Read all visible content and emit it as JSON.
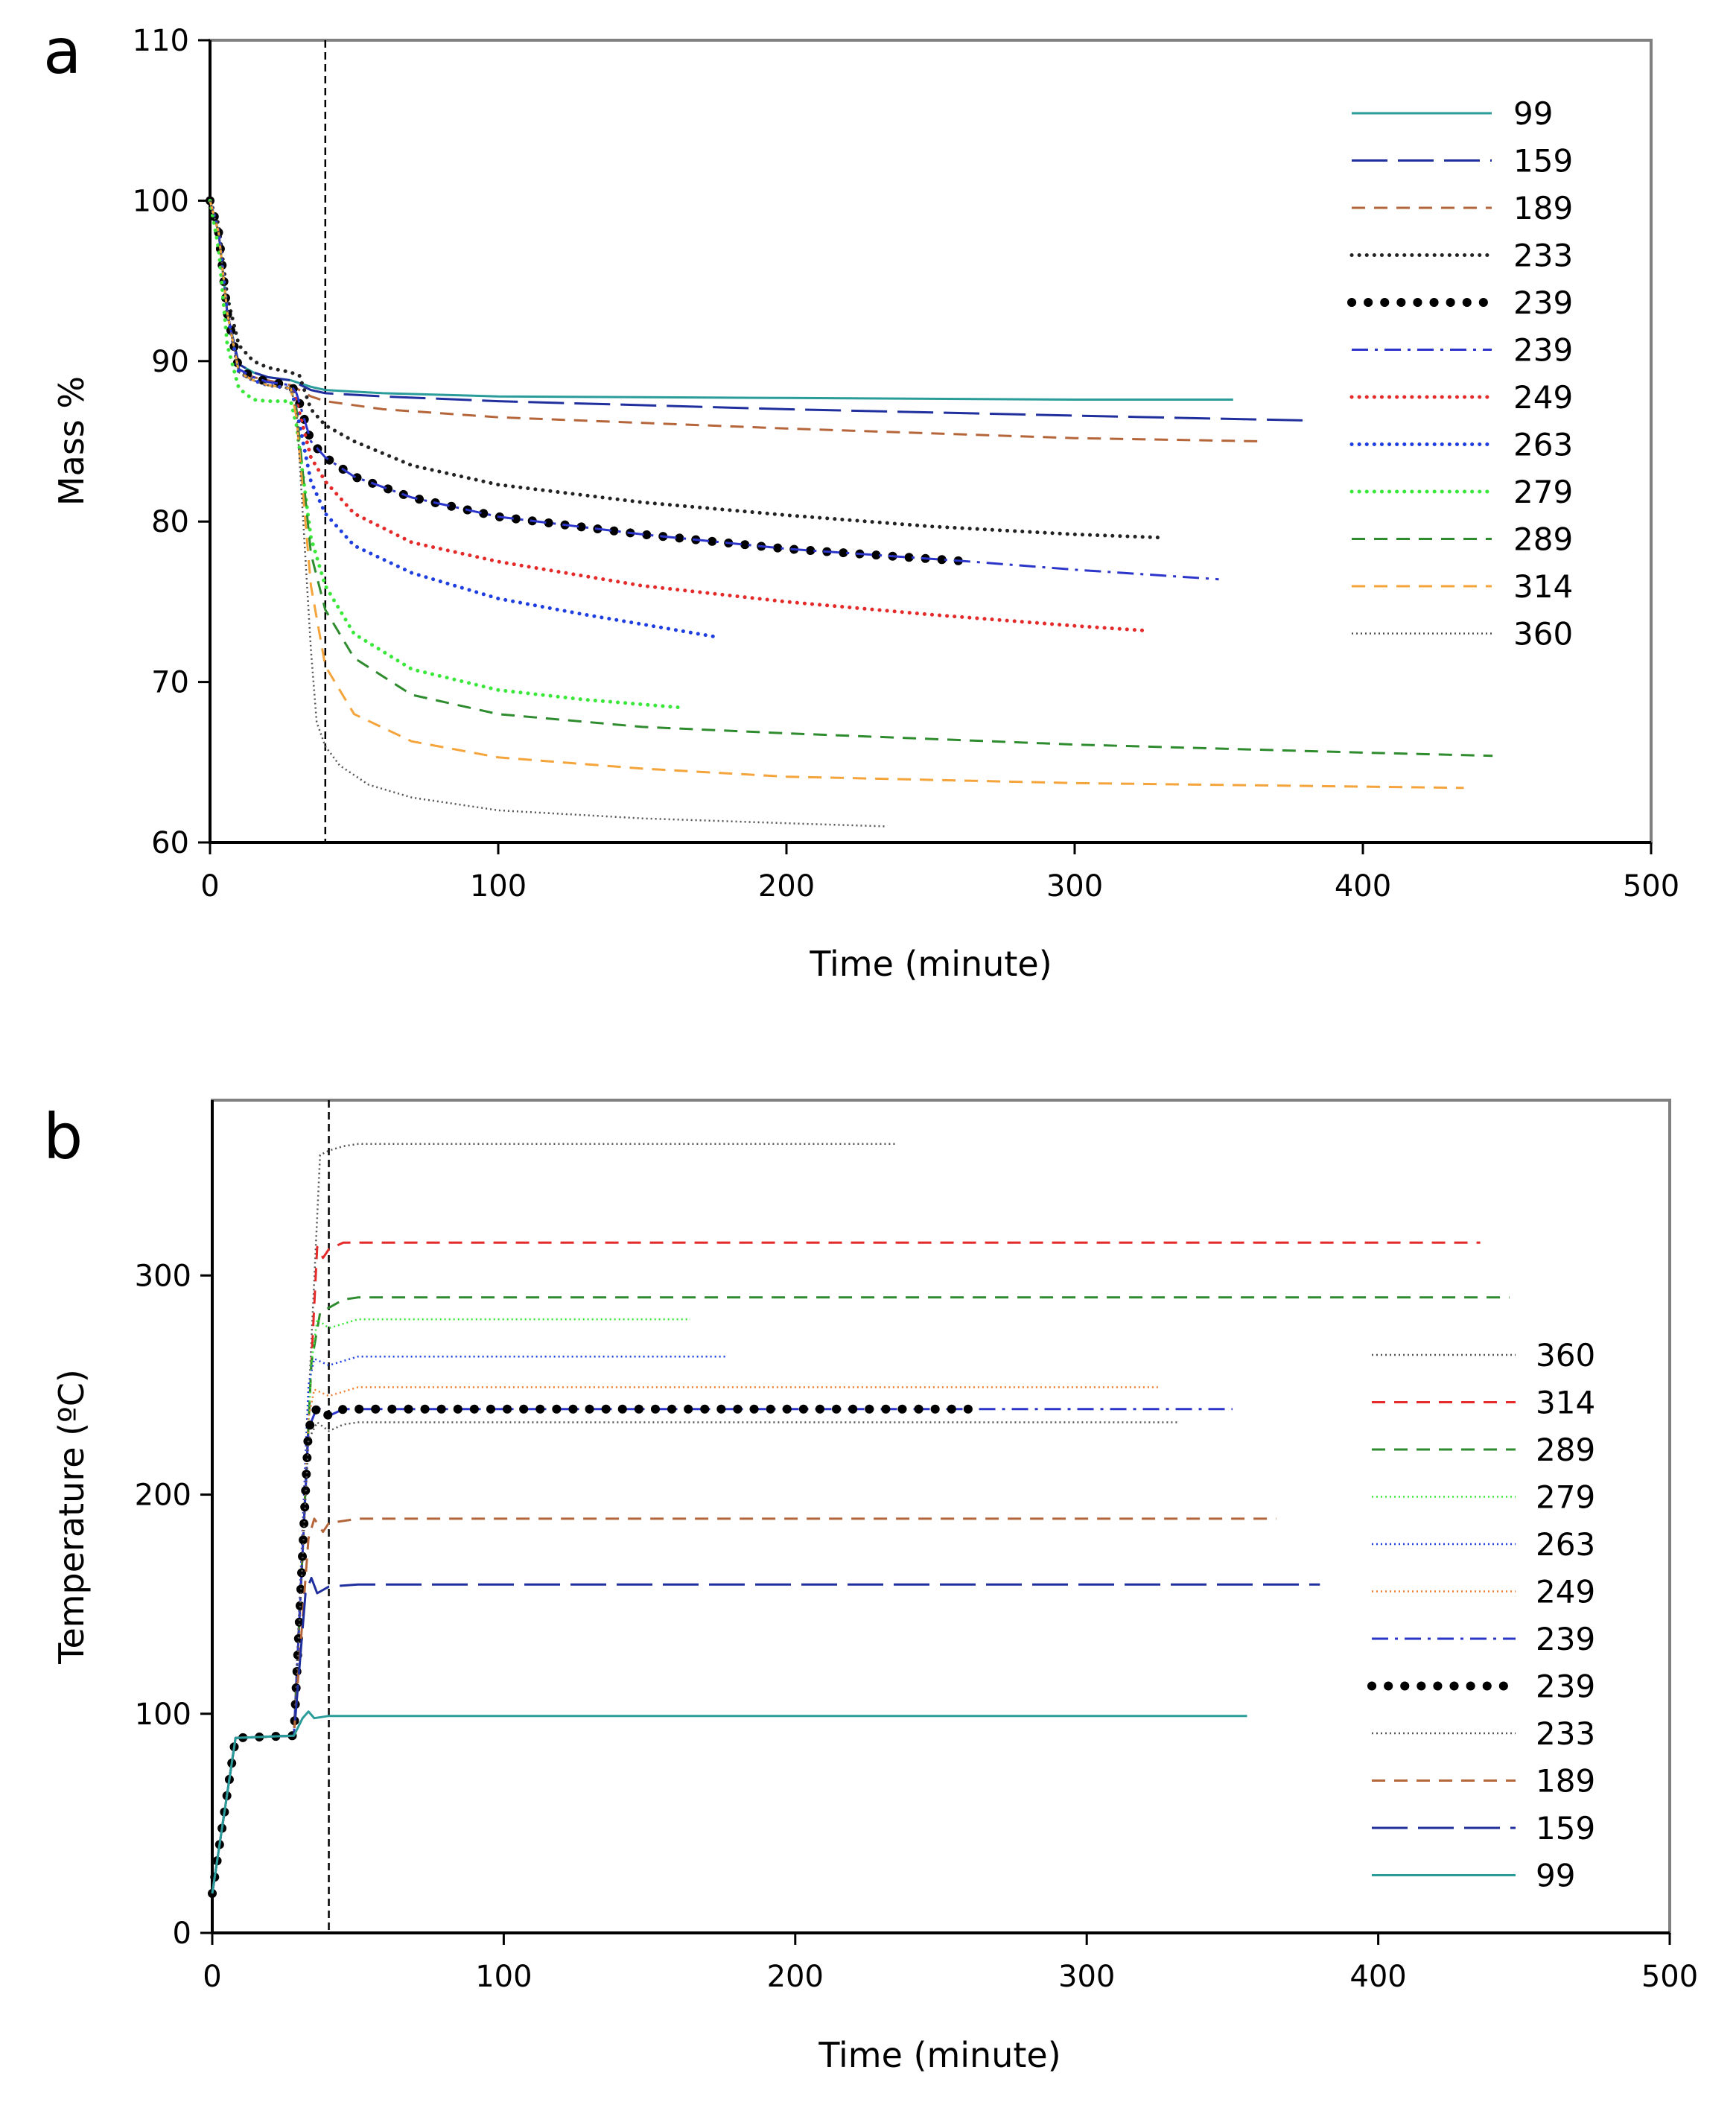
{
  "chart_data": [
    {
      "panel": "a",
      "type": "line",
      "xlabel": "Time (minute)",
      "ylabel": "Mass %",
      "xlim": [
        0,
        500
      ],
      "ylim": [
        60,
        110
      ],
      "xticks": [
        0,
        100,
        200,
        300,
        400,
        500
      ],
      "yticks": [
        60,
        70,
        80,
        90,
        100,
        110
      ],
      "grid": false,
      "vline_x": 40,
      "legend_position": "top-right",
      "series": [
        {
          "name": "99",
          "color": "#2a9d9a",
          "style": "solid",
          "x": [
            0,
            3,
            6,
            10,
            15,
            20,
            28,
            35,
            40,
            60,
            100,
            200,
            300,
            355
          ],
          "y": [
            100,
            98,
            93,
            89.8,
            89.3,
            89,
            88.8,
            88.4,
            88.2,
            88,
            87.8,
            87.7,
            87.6,
            87.6
          ]
        },
        {
          "name": "159",
          "color": "#1f2f9e",
          "style": "longdash",
          "x": [
            0,
            3,
            6,
            10,
            15,
            20,
            28,
            35,
            40,
            60,
            100,
            200,
            300,
            380
          ],
          "y": [
            100,
            98,
            93,
            89.8,
            89.3,
            89,
            88.8,
            88.2,
            88,
            87.8,
            87.5,
            87,
            86.6,
            86.3
          ]
        },
        {
          "name": "189",
          "color": "#b5653a",
          "style": "dash",
          "x": [
            0,
            3,
            6,
            10,
            15,
            20,
            28,
            35,
            40,
            60,
            100,
            200,
            300,
            365
          ],
          "y": [
            100,
            98,
            93,
            89.5,
            89,
            88.8,
            88.5,
            87.8,
            87.5,
            87,
            86.5,
            85.8,
            85.2,
            85
          ]
        },
        {
          "name": "233",
          "color": "#222222",
          "style": "dot",
          "x": [
            0,
            3,
            6,
            10,
            15,
            20,
            28,
            31,
            35,
            40,
            50,
            70,
            100,
            150,
            200,
            250,
            300,
            330
          ],
          "y": [
            100,
            98.5,
            94,
            91,
            90,
            89.6,
            89.3,
            89.1,
            87,
            86,
            85,
            83.5,
            82.3,
            81.2,
            80.4,
            79.7,
            79.2,
            79
          ]
        },
        {
          "name": "239",
          "color": "#000000",
          "style": "bigdot",
          "x": [
            0,
            3,
            6,
            10,
            15,
            20,
            28,
            30,
            35,
            40,
            50,
            70,
            100,
            150,
            200,
            264
          ],
          "y": [
            100,
            98,
            93,
            89.5,
            89,
            88.7,
            88.5,
            88,
            85,
            84,
            82.8,
            81.5,
            80.3,
            79.2,
            78.3,
            77.5
          ]
        },
        {
          "name": "239",
          "color": "#2b35c9",
          "style": "dashdot",
          "x": [
            0,
            3,
            6,
            10,
            15,
            20,
            28,
            30,
            35,
            40,
            50,
            70,
            100,
            150,
            200,
            264,
            300,
            350
          ],
          "y": [
            100,
            98,
            93,
            89.5,
            89,
            88.7,
            88.5,
            88,
            85,
            84,
            82.8,
            81.5,
            80.3,
            79.2,
            78.3,
            77.5,
            77,
            76.4
          ]
        },
        {
          "name": "249",
          "color": "#e52a2a",
          "style": "dot",
          "x": [
            0,
            3,
            6,
            10,
            15,
            20,
            28,
            30,
            35,
            40,
            50,
            70,
            100,
            150,
            200,
            250,
            300,
            325
          ],
          "y": [
            100,
            98,
            93,
            89.3,
            88.8,
            88.5,
            88.3,
            87.5,
            84,
            82.5,
            80.5,
            78.7,
            77.5,
            76,
            75,
            74.2,
            73.5,
            73.2
          ]
        },
        {
          "name": "263",
          "color": "#1e3ee0",
          "style": "dot",
          "x": [
            0,
            3,
            6,
            10,
            15,
            20,
            28,
            30,
            35,
            40,
            50,
            70,
            100,
            130,
            150,
            176
          ],
          "y": [
            100,
            98,
            93,
            89.3,
            88.8,
            88.5,
            88.3,
            87,
            82.5,
            80.5,
            78.5,
            76.8,
            75.2,
            74.2,
            73.6,
            72.8
          ]
        },
        {
          "name": "279",
          "color": "#3ae83a",
          "style": "dot",
          "x": [
            0,
            3,
            6,
            10,
            15,
            20,
            28,
            30,
            35,
            40,
            50,
            70,
            100,
            130,
            164
          ],
          "y": [
            100,
            97,
            91,
            88.3,
            87.6,
            87.5,
            87.5,
            86,
            79,
            76,
            73,
            70.8,
            69.5,
            68.9,
            68.4
          ]
        },
        {
          "name": "289",
          "color": "#2e8b2e",
          "style": "dash",
          "x": [
            0,
            3,
            6,
            10,
            15,
            20,
            28,
            30,
            35,
            40,
            50,
            70,
            100,
            150,
            200,
            300,
            400,
            445
          ],
          "y": [
            100,
            98,
            93,
            89.3,
            88.8,
            88.5,
            88.3,
            87,
            78,
            74.5,
            71.5,
            69.2,
            68,
            67.2,
            66.8,
            66.1,
            65.6,
            65.4
          ]
        },
        {
          "name": "314",
          "color": "#f4a43a",
          "style": "dash",
          "x": [
            0,
            3,
            6,
            10,
            15,
            20,
            28,
            30,
            35,
            40,
            50,
            70,
            100,
            150,
            200,
            300,
            435
          ],
          "y": [
            100,
            98,
            93,
            89.3,
            88.8,
            88.5,
            88.3,
            86.5,
            76,
            71,
            68,
            66.3,
            65.3,
            64.6,
            64.1,
            63.7,
            63.4
          ]
        },
        {
          "name": "360",
          "color": "#555555",
          "style": "finedot",
          "x": [
            0,
            3,
            6,
            10,
            15,
            20,
            28,
            30,
            35,
            37,
            40,
            45,
            55,
            70,
            100,
            150,
            200,
            235
          ],
          "y": [
            100,
            98,
            93,
            89.3,
            88.8,
            88.5,
            88.3,
            87,
            72,
            67.5,
            66,
            64.8,
            63.6,
            62.8,
            62,
            61.5,
            61.2,
            61
          ]
        }
      ]
    },
    {
      "panel": "b",
      "type": "line",
      "xlabel": "Time (minute)",
      "ylabel": "Temperature (ºC)",
      "xlim": [
        0,
        500
      ],
      "ylim": [
        0,
        380
      ],
      "xticks": [
        0,
        100,
        200,
        300,
        400,
        500
      ],
      "yticks": [
        0,
        100,
        200,
        300
      ],
      "grid": false,
      "vline_x": 40,
      "legend_position": "right",
      "series": [
        {
          "name": "360",
          "color": "#555555",
          "style": "finedot",
          "x": [
            0,
            8,
            28,
            34,
            37,
            40,
            45,
            50,
            235
          ],
          "y": [
            18,
            89,
            90,
            270,
            355,
            357,
            359,
            360,
            360
          ]
        },
        {
          "name": "314",
          "color": "#e52a2a",
          "style": "dash",
          "x": [
            0,
            8,
            28,
            34,
            36,
            38,
            40,
            45,
            50,
            435
          ],
          "y": [
            18,
            89,
            90,
            260,
            313,
            308,
            312,
            315,
            315,
            315
          ]
        },
        {
          "name": "289",
          "color": "#2e8b2e",
          "style": "dash",
          "x": [
            0,
            8,
            28,
            34,
            37,
            45,
            50,
            445
          ],
          "y": [
            18,
            89,
            90,
            260,
            283,
            289,
            290,
            290
          ]
        },
        {
          "name": "279",
          "color": "#3ae83a",
          "style": "finedot",
          "x": [
            0,
            8,
            28,
            34,
            36,
            40,
            50,
            164
          ],
          "y": [
            18,
            89,
            90,
            260,
            280,
            276,
            280,
            280
          ]
        },
        {
          "name": "263",
          "color": "#1e3ee0",
          "style": "finedot",
          "x": [
            0,
            8,
            28,
            33,
            35,
            40,
            50,
            176
          ],
          "y": [
            18,
            89,
            90,
            250,
            262,
            259,
            263,
            263
          ]
        },
        {
          "name": "249",
          "color": "#f08030",
          "style": "finedot",
          "x": [
            0,
            8,
            28,
            33,
            35,
            40,
            50,
            325
          ],
          "y": [
            18,
            89,
            90,
            235,
            248,
            245,
            249,
            249
          ]
        },
        {
          "name": "239",
          "color": "#2b35c9",
          "style": "dashdot",
          "x": [
            0,
            8,
            28,
            33,
            36,
            40,
            45,
            50,
            350
          ],
          "y": [
            18,
            89,
            90,
            230,
            240,
            236,
            239,
            239,
            239
          ]
        },
        {
          "name": "239",
          "color": "#000000",
          "style": "bigdot",
          "x": [
            0,
            8,
            28,
            33,
            36,
            40,
            45,
            50,
            264
          ],
          "y": [
            18,
            89,
            90,
            230,
            240,
            236,
            239,
            239,
            239
          ]
        },
        {
          "name": "233",
          "color": "#555555",
          "style": "finedot",
          "x": [
            0,
            8,
            28,
            33,
            36,
            40,
            45,
            50,
            332
          ],
          "y": [
            18,
            89,
            90,
            225,
            233,
            229,
            232,
            233,
            233
          ]
        },
        {
          "name": "189",
          "color": "#b5653a",
          "style": "dash",
          "x": [
            0,
            8,
            28,
            33,
            35,
            38,
            40,
            50,
            365
          ],
          "y": [
            18,
            89,
            90,
            180,
            189,
            183,
            187,
            189,
            189
          ]
        },
        {
          "name": "159",
          "color": "#1f2f9e",
          "style": "longdash",
          "x": [
            0,
            8,
            28,
            32,
            34,
            36,
            40,
            50,
            380
          ],
          "y": [
            18,
            89,
            90,
            155,
            162,
            155,
            158,
            159,
            159
          ]
        },
        {
          "name": "99",
          "color": "#2a9d9a",
          "style": "solid",
          "x": [
            0,
            8,
            28,
            31,
            33,
            35,
            40,
            50,
            355
          ],
          "y": [
            18,
            89,
            90,
            98,
            101,
            98,
            99,
            99,
            99
          ]
        }
      ]
    }
  ],
  "panels": {
    "a": {
      "letter": "a"
    },
    "b": {
      "letter": "b"
    }
  }
}
